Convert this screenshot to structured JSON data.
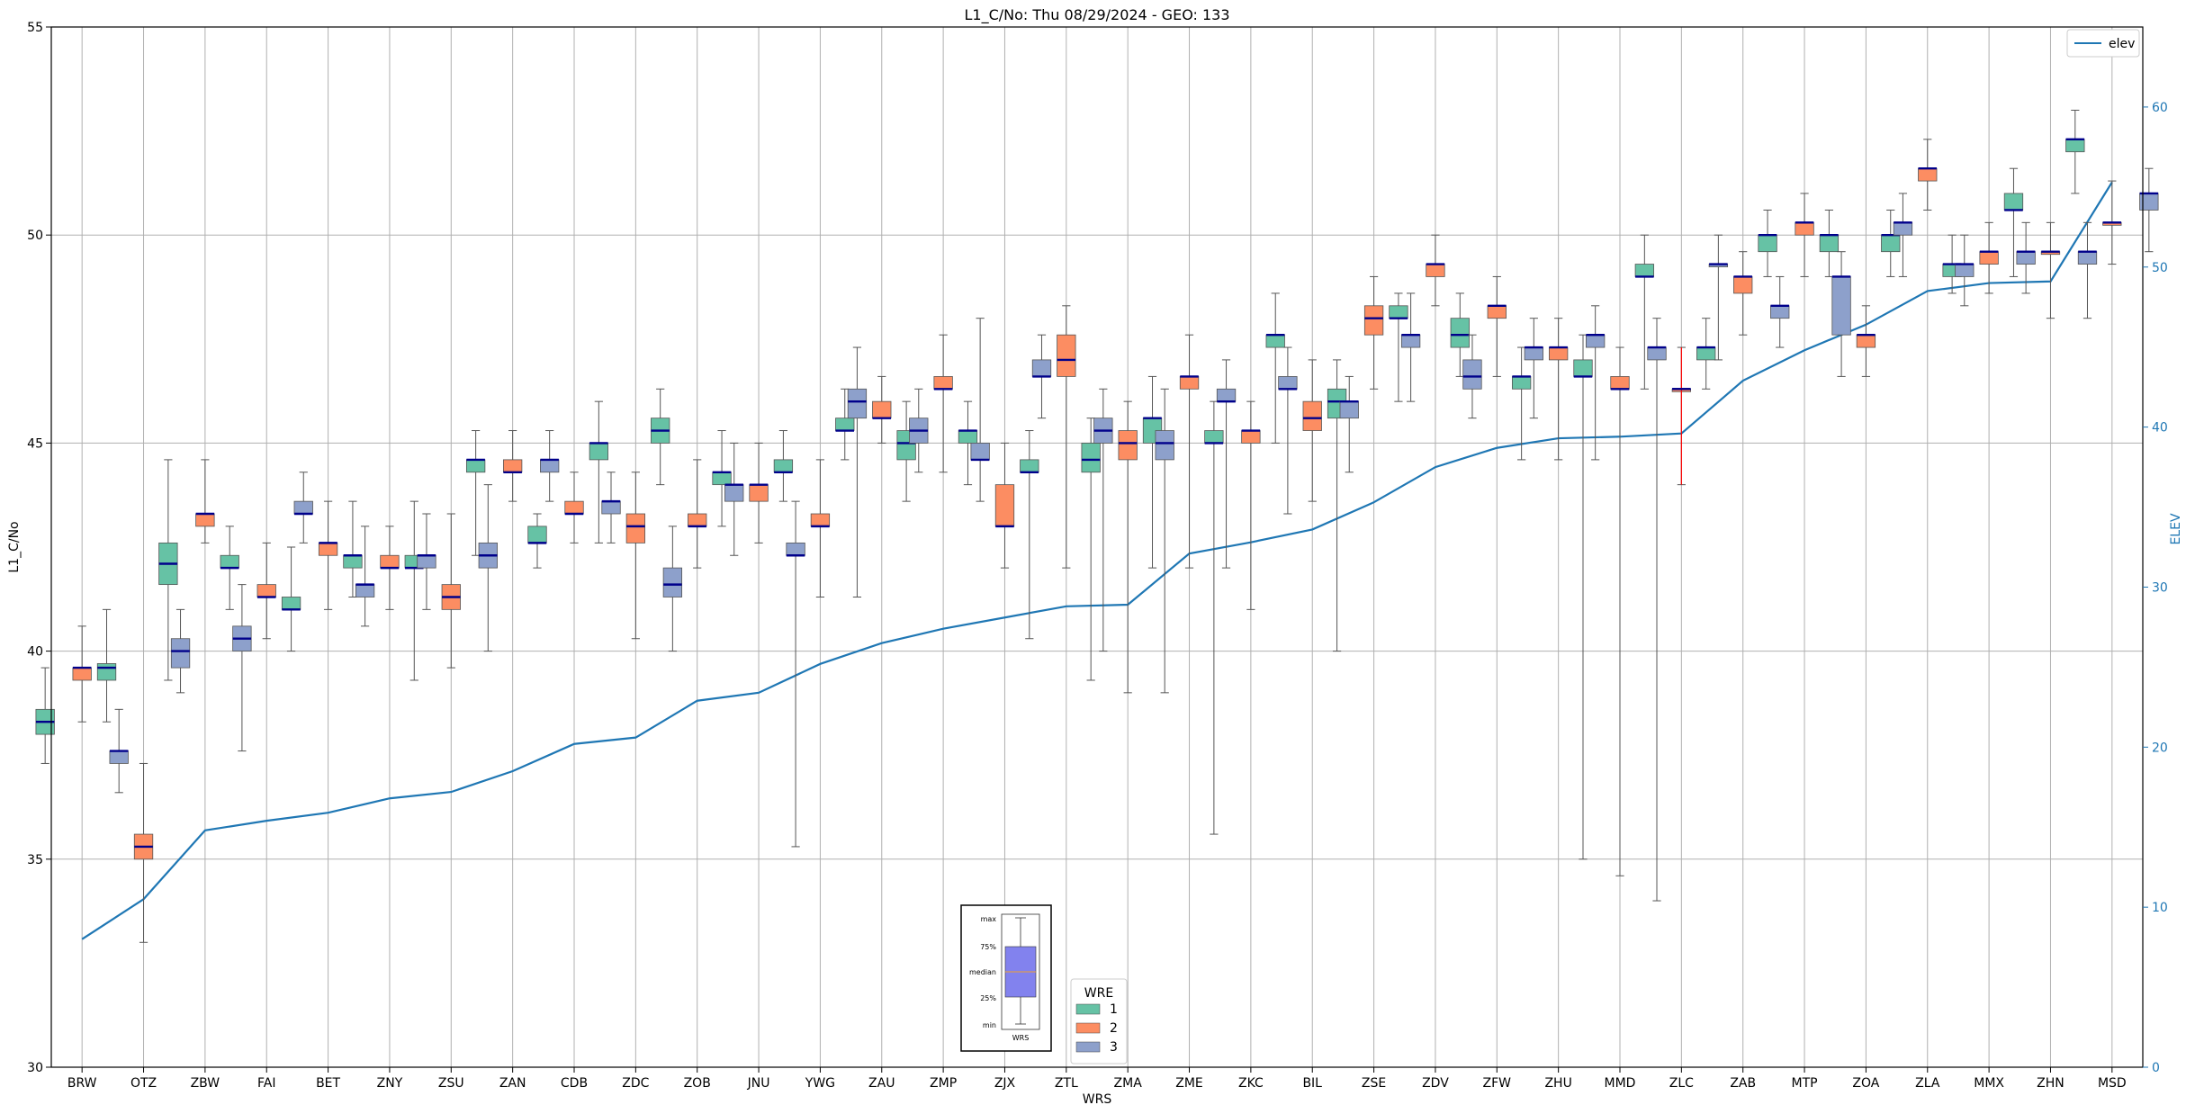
{
  "chart_data": {
    "type": "box",
    "title": "L1_C/No: Thu 08/29/2024 - GEO: 133",
    "xlabel": "WRS",
    "ylabel": "L1_C/No",
    "ylabel_right": "ELEV",
    "ylim": [
      30,
      55
    ],
    "ylim_right": [
      0,
      65
    ],
    "yticks": [
      30,
      35,
      40,
      45,
      50,
      55
    ],
    "yticks_right": [
      0,
      10,
      20,
      30,
      40,
      50,
      60
    ],
    "grid": true,
    "colors": {
      "wre1": "#66c2a5",
      "wre2": "#fc8d62",
      "wre3": "#8da0cb",
      "elev": "#1f77b4",
      "median": "#00008b",
      "whisker": "#555555",
      "anomaly": "#ff0000"
    },
    "categories": [
      "BRW",
      "OTZ",
      "ZBW",
      "FAI",
      "BET",
      "ZNY",
      "ZSU",
      "ZAN",
      "CDB",
      "ZDC",
      "ZOB",
      "JNU",
      "YWG",
      "ZAU",
      "ZMP",
      "ZJX",
      "ZTL",
      "ZMA",
      "ZME",
      "ZKC",
      "BIL",
      "ZSE",
      "ZDV",
      "ZFW",
      "ZHU",
      "MMD",
      "ZLC",
      "ZAB",
      "MTP",
      "ZOA",
      "ZLA",
      "MMX",
      "ZHN",
      "MSD"
    ],
    "elev": [
      8.0,
      10.5,
      14.8,
      15.4,
      15.9,
      16.8,
      17.2,
      18.5,
      20.2,
      20.6,
      22.9,
      23.4,
      25.2,
      26.5,
      27.4,
      28.1,
      28.8,
      28.9,
      32.1,
      32.8,
      33.6,
      35.3,
      37.5,
      38.7,
      39.3,
      39.4,
      39.6,
      42.9,
      44.8,
      46.4,
      48.5,
      49.0,
      49.1,
      55.3
    ],
    "series": [
      {
        "name": "1",
        "boxes": [
          [
            0,
            37.3,
            38.0,
            38.3,
            38.6,
            39.6
          ],
          [
            1,
            38.3,
            39.3,
            39.6,
            39.7,
            41.0
          ],
          [
            2,
            39.3,
            41.6,
            42.1,
            42.6,
            44.6
          ],
          [
            3,
            41.0,
            42.0,
            42.0,
            42.3,
            43.0
          ],
          [
            4,
            40.0,
            41.0,
            41.0,
            41.3,
            42.5
          ],
          [
            5,
            41.3,
            42.0,
            42.3,
            42.3,
            43.6
          ],
          [
            6,
            39.3,
            42.0,
            42.0,
            42.3,
            43.6
          ],
          [
            7,
            42.3,
            44.3,
            44.6,
            44.6,
            45.3
          ],
          [
            8,
            42.0,
            42.6,
            42.6,
            43.0,
            43.3
          ],
          [
            9,
            42.6,
            44.6,
            45.0,
            45.0,
            46.0
          ],
          [
            10,
            44.0,
            45.0,
            45.3,
            45.6,
            46.3
          ],
          [
            11,
            43.0,
            44.0,
            44.3,
            44.3,
            45.3
          ],
          [
            12,
            43.6,
            44.3,
            44.3,
            44.6,
            45.3
          ],
          [
            13,
            44.6,
            45.3,
            45.3,
            45.6,
            46.3
          ],
          [
            14,
            43.6,
            44.6,
            45.0,
            45.3,
            46.0
          ],
          [
            15,
            44.0,
            45.0,
            45.3,
            45.3,
            46.0
          ],
          [
            16,
            40.3,
            44.3,
            44.3,
            44.6,
            45.3
          ],
          [
            17,
            39.3,
            44.3,
            44.6,
            45.0,
            45.6
          ],
          [
            18,
            42.0,
            45.0,
            45.6,
            45.6,
            46.6
          ],
          [
            19,
            35.6,
            45.0,
            45.0,
            45.3,
            46.0
          ],
          [
            20,
            45.0,
            47.3,
            47.6,
            47.6,
            48.6
          ],
          [
            21,
            40.0,
            45.6,
            46.0,
            46.3,
            47.0
          ],
          [
            22,
            46.0,
            48.0,
            48.0,
            48.3,
            48.6
          ],
          [
            23,
            46.6,
            47.3,
            47.6,
            48.0,
            48.6
          ],
          [
            24,
            44.6,
            46.3,
            46.6,
            46.6,
            47.3
          ],
          [
            25,
            35.0,
            46.6,
            46.6,
            47.0,
            47.6
          ],
          [
            26,
            46.3,
            49.0,
            49.0,
            49.3,
            50.0
          ],
          [
            27,
            46.3,
            47.0,
            47.3,
            47.3,
            48.0
          ],
          [
            28,
            49.0,
            49.6,
            50.0,
            50.0,
            50.6
          ],
          [
            29,
            49.0,
            49.6,
            50.0,
            50.0,
            50.6
          ],
          [
            30,
            49.0,
            49.6,
            50.0,
            50.0,
            50.6
          ],
          [
            31,
            48.6,
            49.0,
            49.3,
            49.3,
            50.0
          ],
          [
            32,
            49.0,
            50.6,
            50.6,
            51.0,
            51.6
          ],
          [
            33,
            51.0,
            52.0,
            52.3,
            52.3,
            53.0
          ]
        ]
      },
      {
        "name": "2",
        "boxes": [
          [
            0,
            38.3,
            39.3,
            39.6,
            39.6,
            40.6
          ],
          [
            1,
            33.0,
            35.0,
            35.3,
            35.6,
            37.3
          ],
          [
            2,
            42.6,
            43.0,
            43.3,
            43.3,
            44.6
          ],
          [
            3,
            40.3,
            41.3,
            41.3,
            41.6,
            42.6
          ],
          [
            4,
            41.0,
            42.3,
            42.6,
            42.6,
            43.6
          ],
          [
            5,
            41.0,
            42.0,
            42.0,
            42.3,
            43.0
          ],
          [
            6,
            39.6,
            41.0,
            41.3,
            41.6,
            43.3
          ],
          [
            7,
            43.6,
            44.3,
            44.3,
            44.6,
            45.3
          ],
          [
            8,
            42.6,
            43.3,
            43.3,
            43.6,
            44.3
          ],
          [
            9,
            40.3,
            42.6,
            43.0,
            43.3,
            44.3
          ],
          [
            10,
            42.0,
            43.0,
            43.0,
            43.3,
            44.6
          ],
          [
            11,
            42.6,
            43.6,
            44.0,
            44.0,
            45.0
          ],
          [
            12,
            41.3,
            43.0,
            43.0,
            43.3,
            44.6
          ],
          [
            13,
            45.0,
            45.6,
            45.6,
            46.0,
            46.6
          ],
          [
            14,
            44.3,
            46.3,
            46.3,
            46.6,
            47.6
          ],
          [
            15,
            42.0,
            43.0,
            43.0,
            44.0,
            45.0
          ],
          [
            16,
            42.0,
            46.6,
            47.0,
            47.6,
            48.3
          ],
          [
            17,
            39.0,
            44.6,
            45.0,
            45.3,
            46.0
          ],
          [
            18,
            42.0,
            46.3,
            46.6,
            46.6,
            47.6
          ],
          [
            19,
            41.0,
            45.0,
            45.3,
            45.3,
            46.0
          ],
          [
            20,
            43.6,
            45.3,
            45.6,
            46.0,
            47.0
          ],
          [
            21,
            46.3,
            47.6,
            48.0,
            48.3,
            49.0
          ],
          [
            22,
            48.3,
            49.0,
            49.3,
            49.3,
            50.0
          ],
          [
            23,
            46.6,
            48.0,
            48.3,
            48.3,
            49.0
          ],
          [
            24,
            44.6,
            47.0,
            47.3,
            47.3,
            48.0
          ],
          [
            25,
            34.6,
            46.3,
            46.3,
            46.6,
            47.3
          ],
          [
            26,
            44.0,
            46.3,
            46.3,
            46.3,
            47.3
          ],
          [
            27,
            47.6,
            48.6,
            49.0,
            49.0,
            49.6
          ],
          [
            28,
            49.0,
            50.0,
            50.3,
            50.3,
            51.0
          ],
          [
            29,
            46.6,
            47.3,
            47.6,
            47.6,
            48.3
          ],
          [
            30,
            50.6,
            51.3,
            51.6,
            51.6,
            52.3
          ],
          [
            31,
            48.6,
            49.3,
            49.6,
            49.6,
            50.3
          ],
          [
            32,
            48.0,
            49.6,
            49.6,
            49.6,
            50.3
          ],
          [
            33,
            49.3,
            50.3,
            50.3,
            50.3,
            51.3
          ]
        ]
      },
      {
        "name": "3",
        "boxes": [
          [
            0,
            36.6,
            37.3,
            37.6,
            37.6,
            38.6
          ],
          [
            1,
            39.0,
            39.6,
            40.0,
            40.3,
            41.0
          ],
          [
            2,
            37.6,
            40.0,
            40.3,
            40.6,
            41.6
          ],
          [
            3,
            42.6,
            43.3,
            43.3,
            43.6,
            44.3
          ],
          [
            4,
            40.6,
            41.3,
            41.6,
            41.6,
            43.0
          ],
          [
            5,
            41.0,
            42.0,
            42.3,
            42.3,
            43.3
          ],
          [
            6,
            40.0,
            42.0,
            42.3,
            42.6,
            44.0
          ],
          [
            7,
            43.6,
            44.3,
            44.6,
            44.6,
            45.3
          ],
          [
            8,
            42.6,
            43.3,
            43.6,
            43.6,
            44.3
          ],
          [
            9,
            40.0,
            41.3,
            41.6,
            42.0,
            43.0
          ],
          [
            10,
            42.3,
            43.6,
            44.0,
            44.0,
            45.0
          ],
          [
            11,
            35.3,
            42.3,
            42.3,
            42.6,
            43.6
          ],
          [
            12,
            41.3,
            45.6,
            46.0,
            46.3,
            47.3
          ],
          [
            13,
            44.3,
            45.0,
            45.3,
            45.6,
            46.3
          ],
          [
            14,
            43.6,
            44.6,
            44.6,
            45.0,
            48.0
          ],
          [
            15,
            45.6,
            46.6,
            46.6,
            47.0,
            47.6
          ],
          [
            16,
            40.0,
            45.0,
            45.3,
            45.6,
            46.3
          ],
          [
            17,
            39.0,
            44.6,
            45.0,
            45.3,
            46.3
          ],
          [
            18,
            42.0,
            46.0,
            46.0,
            46.3,
            47.0
          ],
          [
            19,
            43.3,
            46.3,
            46.3,
            46.6,
            47.3
          ],
          [
            20,
            44.3,
            45.6,
            46.0,
            46.0,
            46.6
          ],
          [
            21,
            46.0,
            47.3,
            47.6,
            47.6,
            48.6
          ],
          [
            22,
            45.6,
            46.3,
            46.6,
            47.0,
            47.6
          ],
          [
            23,
            45.6,
            47.0,
            47.3,
            47.3,
            48.0
          ],
          [
            24,
            44.6,
            47.3,
            47.6,
            47.6,
            48.3
          ],
          [
            25,
            34.0,
            47.0,
            47.3,
            47.3,
            48.0
          ],
          [
            26,
            47.0,
            49.3,
            49.3,
            49.3,
            50.0
          ],
          [
            27,
            47.3,
            48.0,
            48.3,
            48.3,
            49.0
          ],
          [
            28,
            46.6,
            47.6,
            49.0,
            49.0,
            49.6
          ],
          [
            29,
            49.0,
            50.0,
            50.3,
            50.3,
            51.0
          ],
          [
            30,
            48.3,
            49.0,
            49.3,
            49.3,
            50.0
          ],
          [
            31,
            48.6,
            49.3,
            49.6,
            49.6,
            50.3
          ],
          [
            32,
            48.0,
            49.3,
            49.6,
            49.6,
            50.3
          ],
          [
            33,
            49.6,
            50.6,
            51.0,
            51.0,
            51.6
          ]
        ]
      }
    ],
    "anomalies": [
      {
        "category": "ZLC",
        "wre": "2",
        "min": 44.0,
        "max": 47.3,
        "median": 46.3
      }
    ],
    "legend": {
      "title": "WRE",
      "entries": [
        "1",
        "2",
        "3"
      ],
      "placement": "bottom-center"
    },
    "elev_legend": {
      "label": "elev",
      "placement": "top-right"
    },
    "key": {
      "labels": [
        "max",
        "75%",
        "median",
        "25%",
        "min"
      ],
      "caption": "WRS"
    }
  }
}
